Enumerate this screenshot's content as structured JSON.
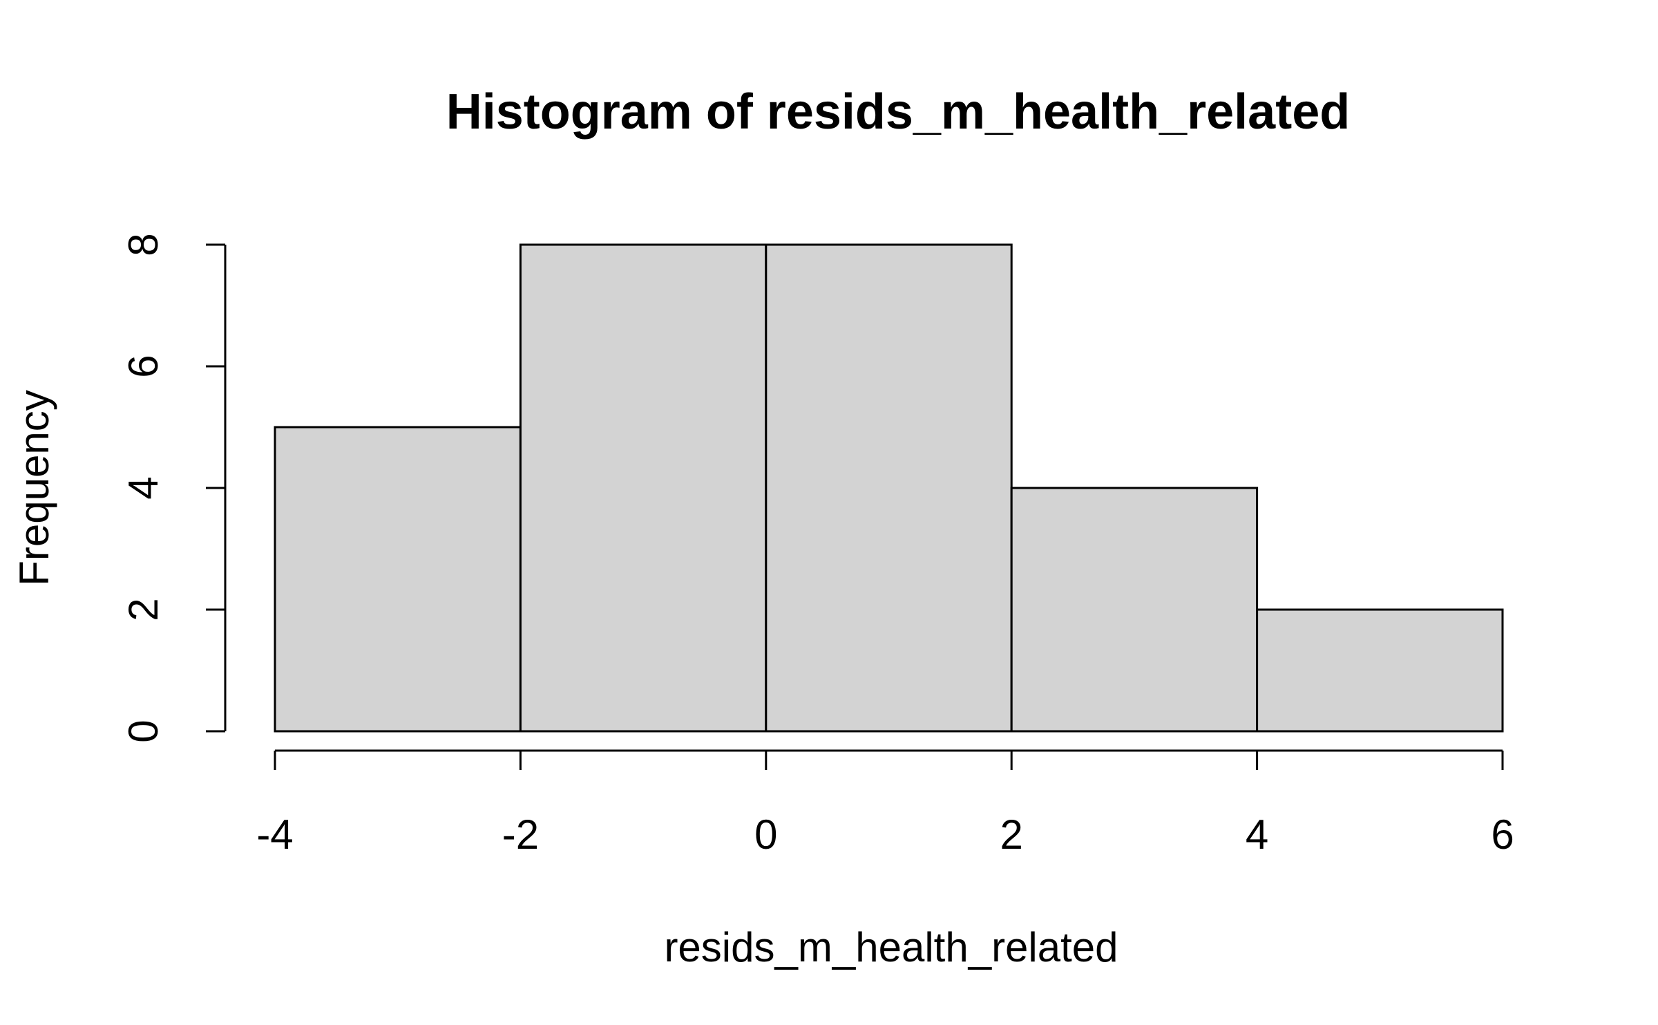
{
  "chart_data": {
    "type": "bar",
    "title": "Histogram of resids_m_health_related",
    "xlabel": "resids_m_health_related",
    "ylabel": "Frequency",
    "bins": [
      {
        "from": -4,
        "to": -2,
        "count": 5
      },
      {
        "from": -2,
        "to": 0,
        "count": 8
      },
      {
        "from": 0,
        "to": 2,
        "count": 8
      },
      {
        "from": 2,
        "to": 4,
        "count": 4
      },
      {
        "from": 4,
        "to": 6,
        "count": 2
      }
    ],
    "x_ticks": [
      "-4",
      "-2",
      "0",
      "2",
      "4",
      "6"
    ],
    "y_ticks": [
      "0",
      "2",
      "4",
      "6",
      "8"
    ],
    "xlim": [
      -4,
      6
    ],
    "ylim": [
      0,
      8
    ],
    "grid": false,
    "colors": {
      "bar_fill": "#d3d3d3",
      "bar_stroke": "#000000"
    }
  }
}
